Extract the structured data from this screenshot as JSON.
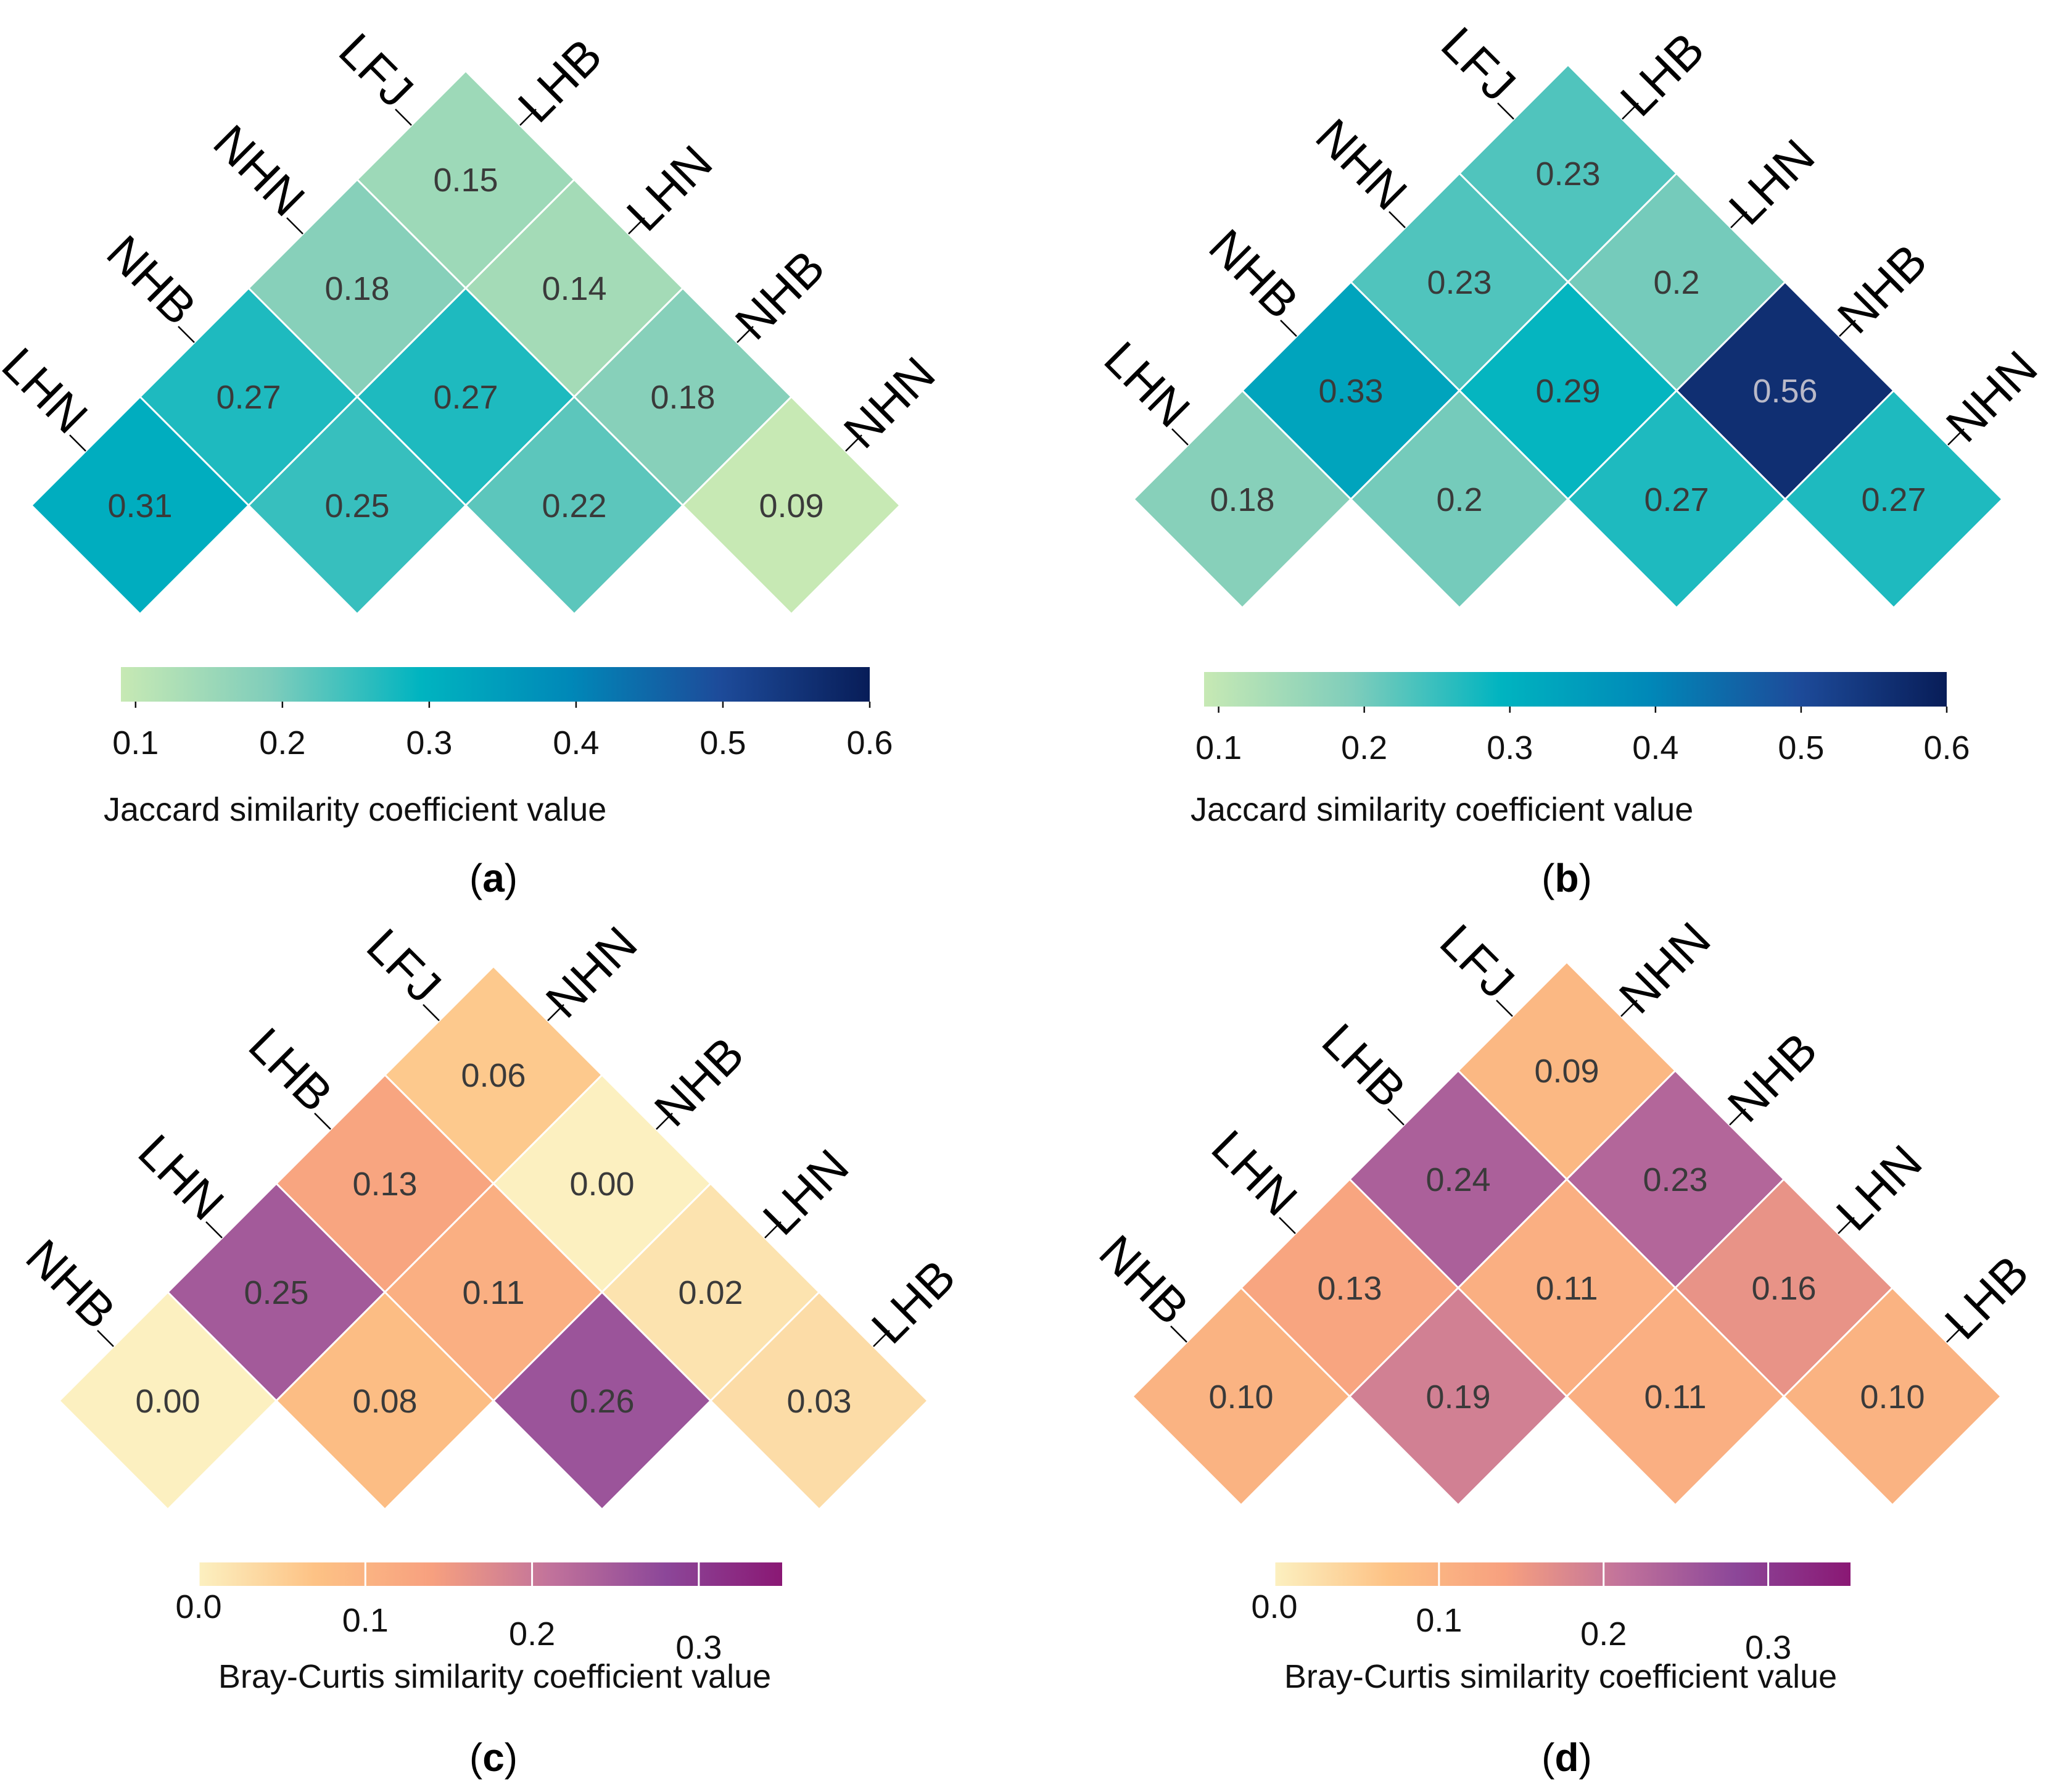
{
  "figure": {
    "background": "#ffffff"
  },
  "chart_data": [
    {
      "type": "heatmap",
      "panel_label": "(a)",
      "panel_letter": "a",
      "colormap": "YlGnBu",
      "colors": [
        "#c7e9b4",
        "#7fcdbb",
        "#00b4c0",
        "#0088b8",
        "#1d4b9a",
        "#081d58"
      ],
      "vmin": 0.09,
      "vmax": 0.6,
      "left_labels": [
        "LHN",
        "NHB",
        "NHN",
        "LFJ"
      ],
      "right_labels": [
        "LHB",
        "LHN",
        "NHB",
        "NHN"
      ],
      "cells": [
        {
          "row": 0,
          "col": 0,
          "value": 0.15,
          "label": "0.15"
        },
        {
          "row": 1,
          "col": 0,
          "value": 0.18,
          "label": "0.18"
        },
        {
          "row": 1,
          "col": 1,
          "value": 0.14,
          "label": "0.14"
        },
        {
          "row": 2,
          "col": 0,
          "value": 0.27,
          "label": "0.27"
        },
        {
          "row": 2,
          "col": 1,
          "value": 0.27,
          "label": "0.27"
        },
        {
          "row": 2,
          "col": 2,
          "value": 0.18,
          "label": "0.18"
        },
        {
          "row": 3,
          "col": 0,
          "value": 0.31,
          "label": "0.31"
        },
        {
          "row": 3,
          "col": 1,
          "value": 0.25,
          "label": "0.25"
        },
        {
          "row": 3,
          "col": 2,
          "value": 0.22,
          "label": "0.22"
        },
        {
          "row": 3,
          "col": 3,
          "value": 0.09,
          "label": "0.09"
        }
      ],
      "colorbar": {
        "ticks": [
          0.1,
          0.2,
          0.3,
          0.4,
          0.5,
          0.6
        ],
        "tick_labels": [
          "0.1",
          "0.2",
          "0.3",
          "0.4",
          "0.5",
          "0.6"
        ],
        "title": "Jaccard similarity coefficient value"
      }
    },
    {
      "type": "heatmap",
      "panel_label": "(b)",
      "panel_letter": "b",
      "colormap": "YlGnBu",
      "colors": [
        "#c7e9b4",
        "#7fcdbb",
        "#00b4c0",
        "#0088b8",
        "#1d4b9a",
        "#081d58"
      ],
      "vmin": 0.09,
      "vmax": 0.6,
      "left_labels": [
        "LHN",
        "NHB",
        "NHN",
        "LFJ"
      ],
      "right_labels": [
        "LHB",
        "LHN",
        "NHB",
        "NHN"
      ],
      "cells": [
        {
          "row": 0,
          "col": 0,
          "value": 0.23,
          "label": "0.23"
        },
        {
          "row": 1,
          "col": 0,
          "value": 0.23,
          "label": "0.23"
        },
        {
          "row": 1,
          "col": 1,
          "value": 0.2,
          "label": "0.2"
        },
        {
          "row": 2,
          "col": 0,
          "value": 0.33,
          "label": "0.33"
        },
        {
          "row": 2,
          "col": 1,
          "value": 0.29,
          "label": "0.29"
        },
        {
          "row": 2,
          "col": 2,
          "value": 0.56,
          "label": "0.56"
        },
        {
          "row": 3,
          "col": 0,
          "value": 0.18,
          "label": "0.18"
        },
        {
          "row": 3,
          "col": 1,
          "value": 0.2,
          "label": "0.2"
        },
        {
          "row": 3,
          "col": 2,
          "value": 0.27,
          "label": "0.27"
        },
        {
          "row": 3,
          "col": 3,
          "value": 0.27,
          "label": "0.27"
        }
      ],
      "colorbar": {
        "ticks": [
          0.1,
          0.2,
          0.3,
          0.4,
          0.5,
          0.6
        ],
        "tick_labels": [
          "0.1",
          "0.2",
          "0.3",
          "0.4",
          "0.5",
          "0.6"
        ],
        "title": "Jaccard similarity coefficient value"
      }
    },
    {
      "type": "heatmap",
      "panel_label": "(c)",
      "panel_letter": "c",
      "colormap": "magma_r",
      "colors": [
        "#fcf0c0",
        "#fdc285",
        "#f7a07f",
        "#c2739b",
        "#8c4799",
        "#8a1874"
      ],
      "vmin": 0.0,
      "vmax": 0.35,
      "left_labels": [
        "NHB",
        "LHN",
        "LHB",
        "LFJ"
      ],
      "right_labels": [
        "NHN",
        "NHB",
        "LHN",
        "LHB"
      ],
      "cells": [
        {
          "row": 0,
          "col": 0,
          "value": 0.06,
          "label": "0.06"
        },
        {
          "row": 1,
          "col": 0,
          "value": 0.13,
          "label": "0.13"
        },
        {
          "row": 1,
          "col": 1,
          "value": 0.0,
          "label": "0.00"
        },
        {
          "row": 2,
          "col": 0,
          "value": 0.25,
          "label": "0.25"
        },
        {
          "row": 2,
          "col": 1,
          "value": 0.11,
          "label": "0.11"
        },
        {
          "row": 2,
          "col": 2,
          "value": 0.02,
          "label": "0.02"
        },
        {
          "row": 3,
          "col": 0,
          "value": 0.0,
          "label": "0.00"
        },
        {
          "row": 3,
          "col": 1,
          "value": 0.08,
          "label": "0.08"
        },
        {
          "row": 3,
          "col": 2,
          "value": 0.26,
          "label": "0.26"
        },
        {
          "row": 3,
          "col": 3,
          "value": 0.03,
          "label": "0.03"
        }
      ],
      "colorbar": {
        "ticks": [
          0.0,
          0.1,
          0.2,
          0.3
        ],
        "tick_labels": [
          "0.0",
          "0.1",
          "0.2",
          "0.3"
        ],
        "title": "Bray-Curtis similarity coefficient value"
      }
    },
    {
      "type": "heatmap",
      "panel_label": "(d)",
      "panel_letter": "d",
      "colormap": "magma_r",
      "colors": [
        "#fcf0c0",
        "#fdc285",
        "#f7a07f",
        "#c2739b",
        "#8c4799",
        "#8a1874"
      ],
      "vmin": 0.0,
      "vmax": 0.35,
      "left_labels": [
        "NHB",
        "LHN",
        "LHB",
        "LFJ"
      ],
      "right_labels": [
        "NHN",
        "NHB",
        "LHN",
        "LHB"
      ],
      "cells": [
        {
          "row": 0,
          "col": 0,
          "value": 0.09,
          "label": "0.09"
        },
        {
          "row": 1,
          "col": 0,
          "value": 0.24,
          "label": "0.24"
        },
        {
          "row": 1,
          "col": 1,
          "value": 0.23,
          "label": "0.23"
        },
        {
          "row": 2,
          "col": 0,
          "value": 0.13,
          "label": "0.13"
        },
        {
          "row": 2,
          "col": 1,
          "value": 0.11,
          "label": "0.11"
        },
        {
          "row": 2,
          "col": 2,
          "value": 0.16,
          "label": "0.16"
        },
        {
          "row": 3,
          "col": 0,
          "value": 0.1,
          "label": "0.10"
        },
        {
          "row": 3,
          "col": 1,
          "value": 0.19,
          "label": "0.19"
        },
        {
          "row": 3,
          "col": 2,
          "value": 0.11,
          "label": "0.11"
        },
        {
          "row": 3,
          "col": 3,
          "value": 0.1,
          "label": "0.10"
        }
      ],
      "colorbar": {
        "ticks": [
          0.0,
          0.1,
          0.2,
          0.3
        ],
        "tick_labels": [
          "0.0",
          "0.1",
          "0.2",
          "0.3"
        ],
        "title": "Bray-Curtis similarity coefficient value"
      }
    }
  ]
}
